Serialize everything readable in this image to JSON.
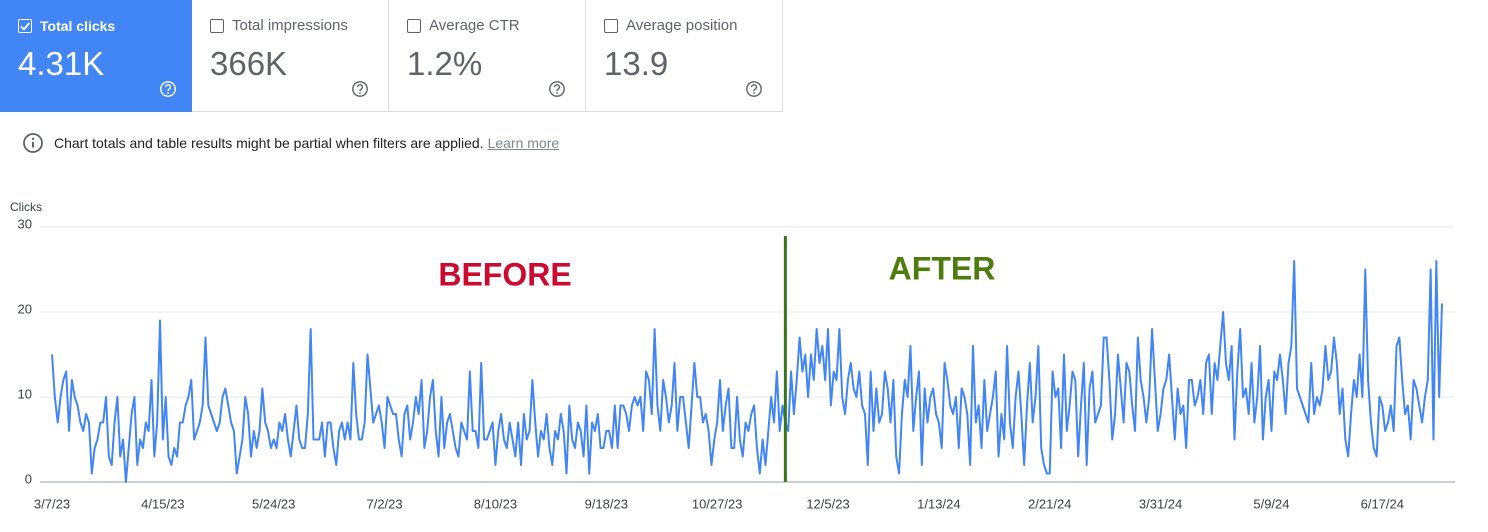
{
  "metrics": [
    {
      "label": "Total clicks",
      "value": "4.31K",
      "checked": true
    },
    {
      "label": "Total impressions",
      "value": "366K",
      "checked": false
    },
    {
      "label": "Average CTR",
      "value": "1.2%",
      "checked": false
    },
    {
      "label": "Average position",
      "value": "13.9",
      "checked": false
    }
  ],
  "notice": {
    "text": "Chart totals and table results might be partial when filters are applied.",
    "link": "Learn more"
  },
  "chart_data": {
    "type": "line",
    "y_label": "Clicks",
    "color": "#4285f4",
    "grid": true,
    "ylim": [
      0,
      30
    ],
    "yticks": [
      0,
      10,
      20,
      30
    ],
    "annotations": [
      {
        "text": "BEFORE",
        "color": "#cc0a2f"
      },
      {
        "text": "AFTER",
        "color": "#4e7d0e"
      }
    ],
    "reference_line": {
      "x": 258,
      "color": "#38761d"
    },
    "categories": [
      "3/7/23",
      null,
      null,
      null,
      null,
      null,
      null,
      null,
      null,
      null,
      null,
      null,
      null,
      null,
      null,
      null,
      null,
      null,
      null,
      null,
      null,
      null,
      null,
      null,
      null,
      null,
      null,
      null,
      null,
      null,
      null,
      null,
      null,
      null,
      null,
      null,
      null,
      null,
      null,
      "4/15/23",
      null,
      null,
      null,
      null,
      null,
      null,
      null,
      null,
      null,
      null,
      null,
      null,
      null,
      null,
      null,
      null,
      null,
      null,
      null,
      null,
      null,
      null,
      null,
      null,
      null,
      null,
      null,
      null,
      null,
      null,
      null,
      null,
      null,
      null,
      null,
      null,
      null,
      null,
      "5/24/23",
      null,
      null,
      null,
      null,
      null,
      null,
      null,
      null,
      null,
      null,
      null,
      null,
      null,
      null,
      null,
      null,
      null,
      null,
      null,
      null,
      null,
      null,
      null,
      null,
      null,
      null,
      null,
      null,
      null,
      null,
      null,
      null,
      null,
      null,
      null,
      null,
      null,
      null,
      "7/2/23",
      null,
      null,
      null,
      null,
      null,
      null,
      null,
      null,
      null,
      null,
      null,
      null,
      null,
      null,
      null,
      null,
      null,
      null,
      null,
      null,
      null,
      null,
      null,
      null,
      null,
      null,
      null,
      null,
      null,
      null,
      null,
      null,
      null,
      null,
      null,
      null,
      null,
      null,
      "8/10/23",
      null,
      null,
      null,
      null,
      null,
      null,
      null,
      null,
      null,
      null,
      null,
      null,
      null,
      null,
      null,
      null,
      null,
      null,
      null,
      null,
      null,
      null,
      null,
      null,
      null,
      null,
      null,
      null,
      null,
      null,
      null,
      null,
      null,
      null,
      null,
      null,
      null,
      null,
      "9/18/23",
      null,
      null,
      null,
      null,
      null,
      null,
      null,
      null,
      null,
      null,
      null,
      null,
      null,
      null,
      null,
      null,
      null,
      null,
      null,
      null,
      null,
      null,
      null,
      null,
      null,
      null,
      null,
      null,
      null,
      null,
      null,
      null,
      null,
      null,
      null,
      null,
      null,
      null,
      "10/27/23",
      null,
      null,
      null,
      null,
      null,
      null,
      null,
      null,
      null,
      null,
      null,
      null,
      null,
      null,
      null,
      null,
      null,
      null,
      null,
      null,
      null,
      null,
      null,
      null,
      null,
      null,
      null,
      null,
      null,
      null,
      null,
      null,
      null,
      null,
      null,
      null,
      null,
      null,
      "12/5/23",
      null,
      null,
      null,
      null,
      null,
      null,
      null,
      null,
      null,
      null,
      null,
      null,
      null,
      null,
      null,
      null,
      null,
      null,
      null,
      null,
      null,
      null,
      null,
      null,
      null,
      null,
      null,
      null,
      null,
      null,
      null,
      null,
      null,
      null,
      null,
      null,
      null,
      null,
      "1/13/24",
      null,
      null,
      null,
      null,
      null,
      null,
      null,
      null,
      null,
      null,
      null,
      null,
      null,
      null,
      null,
      null,
      null,
      null,
      null,
      null,
      null,
      null,
      null,
      null,
      null,
      null,
      null,
      null,
      null,
      null,
      null,
      null,
      null,
      null,
      null,
      null,
      null,
      null,
      "2/21/24",
      null,
      null,
      null,
      null,
      null,
      null,
      null,
      null,
      null,
      null,
      null,
      null,
      null,
      null,
      null,
      null,
      null,
      null,
      null,
      null,
      null,
      null,
      null,
      null,
      null,
      null,
      null,
      null,
      null,
      null,
      null,
      null,
      null,
      null,
      null,
      null,
      null,
      null,
      "3/31/24",
      null,
      null,
      null,
      null,
      null,
      null,
      null,
      null,
      null,
      null,
      null,
      null,
      null,
      null,
      null,
      null,
      null,
      null,
      null,
      null,
      null,
      null,
      null,
      null,
      null,
      null,
      null,
      null,
      null,
      null,
      null,
      null,
      null,
      null,
      null,
      null,
      null,
      null,
      "5/9/24",
      null,
      null,
      null,
      null,
      null,
      null,
      null,
      null,
      null,
      null,
      null,
      null,
      null,
      null,
      null,
      null,
      null,
      null,
      null,
      null,
      null,
      null,
      null,
      null,
      null,
      null,
      null,
      null,
      null,
      null,
      null,
      null,
      null,
      null,
      null,
      null,
      null,
      null,
      "6/17/24",
      null,
      null,
      null,
      null,
      null,
      null,
      null,
      null,
      null,
      null,
      null,
      null,
      null,
      null,
      null,
      null,
      null,
      null,
      null,
      null,
      null
    ],
    "values": [
      15,
      10,
      7,
      10,
      12,
      13,
      6,
      12,
      10,
      9,
      7,
      6,
      8,
      7,
      1,
      4,
      5,
      7,
      7,
      10,
      3,
      2,
      7,
      10,
      3,
      5,
      0,
      4,
      8,
      10,
      2,
      5,
      4,
      7,
      6,
      12,
      3,
      7,
      19,
      5,
      10,
      3,
      2,
      4,
      3,
      7,
      7,
      9,
      10,
      12,
      5,
      6,
      7,
      9,
      17,
      9,
      8,
      7,
      6,
      7,
      10,
      11,
      9,
      7,
      6,
      1,
      3,
      5,
      10,
      8,
      3,
      6,
      4,
      6,
      11,
      7,
      6,
      4,
      5,
      4,
      7,
      6,
      8,
      5,
      3,
      6,
      9,
      5,
      4,
      4,
      8,
      18,
      5,
      5,
      5,
      7,
      3,
      7,
      7,
      4,
      2,
      6,
      7,
      5,
      7,
      5,
      14,
      8,
      5,
      5,
      7,
      15,
      11,
      7,
      8,
      9,
      7,
      4,
      10,
      9,
      8,
      8,
      5,
      3,
      8,
      9,
      5,
      7,
      10,
      8,
      12,
      4,
      6,
      10,
      12,
      6,
      3,
      10,
      4,
      7,
      8,
      6,
      4,
      3,
      7,
      6,
      5,
      13,
      6,
      6,
      4,
      14,
      5,
      5,
      6,
      7,
      2,
      6,
      8,
      5,
      4,
      7,
      5,
      3,
      7,
      2,
      8,
      5,
      6,
      12,
      7,
      3,
      6,
      5,
      8,
      4,
      2,
      6,
      5,
      8,
      6,
      1,
      9,
      5,
      4,
      7,
      6,
      3,
      9,
      1,
      7,
      6,
      8,
      4,
      4,
      6,
      6,
      4,
      9,
      4,
      9,
      9,
      8,
      6,
      9,
      10,
      9,
      10,
      6,
      13,
      12,
      8,
      18,
      9,
      6,
      12,
      10,
      7,
      9,
      14,
      6,
      10,
      10,
      7,
      4,
      9,
      14,
      10,
      10,
      7,
      8,
      6,
      2,
      5,
      7,
      12,
      6,
      9,
      11,
      4,
      4,
      10,
      5,
      3,
      7,
      6,
      8,
      9,
      4,
      1,
      5,
      2,
      6,
      10,
      7,
      13,
      6,
      9,
      7,
      6,
      13,
      8,
      12,
      17,
      13,
      15,
      10,
      15,
      12,
      18,
      14,
      16,
      12,
      18,
      9,
      13,
      12,
      18,
      10,
      8,
      12,
      14,
      11,
      10,
      13,
      9,
      8,
      2,
      13,
      6,
      11,
      7,
      8,
      13,
      11,
      7,
      12,
      3,
      1,
      8,
      12,
      10,
      16,
      6,
      10,
      13,
      2,
      11,
      7,
      10,
      11,
      8,
      7,
      4,
      14,
      12,
      9,
      8,
      10,
      4,
      11,
      10,
      8,
      2,
      16,
      7,
      9,
      4,
      12,
      6,
      8,
      10,
      13,
      3,
      8,
      5,
      16,
      7,
      4,
      10,
      13,
      8,
      2,
      9,
      14,
      7,
      10,
      16,
      4,
      2,
      1,
      1,
      13,
      10,
      11,
      4,
      15,
      6,
      9,
      13,
      12,
      3,
      9,
      14,
      2,
      11,
      13,
      7,
      8,
      9,
      17,
      17,
      12,
      5,
      8,
      15,
      11,
      7,
      14,
      13,
      9,
      6,
      17,
      12,
      10,
      7,
      10,
      18,
      12,
      6,
      8,
      11,
      12,
      15,
      10,
      5,
      11,
      8,
      9,
      4,
      12,
      12,
      9,
      10,
      12,
      8,
      14,
      15,
      8,
      14,
      12,
      16,
      20,
      14,
      12,
      16,
      5,
      13,
      18,
      10,
      11,
      8,
      14,
      7,
      10,
      16,
      5,
      10,
      12,
      6,
      13,
      12,
      15,
      12,
      8,
      14,
      16,
      26,
      11,
      10,
      9,
      8,
      7,
      14,
      8,
      10,
      9,
      11,
      16,
      12,
      13,
      17,
      14,
      8,
      11,
      5,
      3,
      8,
      12,
      10,
      15,
      10,
      25,
      12,
      7,
      4,
      3,
      10,
      9,
      6,
      7,
      9,
      6,
      16,
      17,
      12,
      8,
      9,
      5,
      12,
      11,
      9,
      7,
      10,
      12,
      25,
      5,
      26,
      10,
      21
    ]
  }
}
